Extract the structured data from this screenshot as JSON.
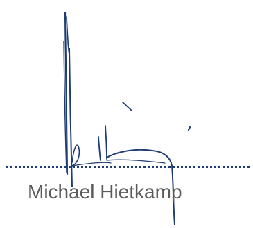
{
  "signature": {
    "signer_name": "Michael Hietkamp",
    "ink_color": "#1f3d74",
    "name_color": "#5a5a5a",
    "line_color": "#1f3d74"
  }
}
